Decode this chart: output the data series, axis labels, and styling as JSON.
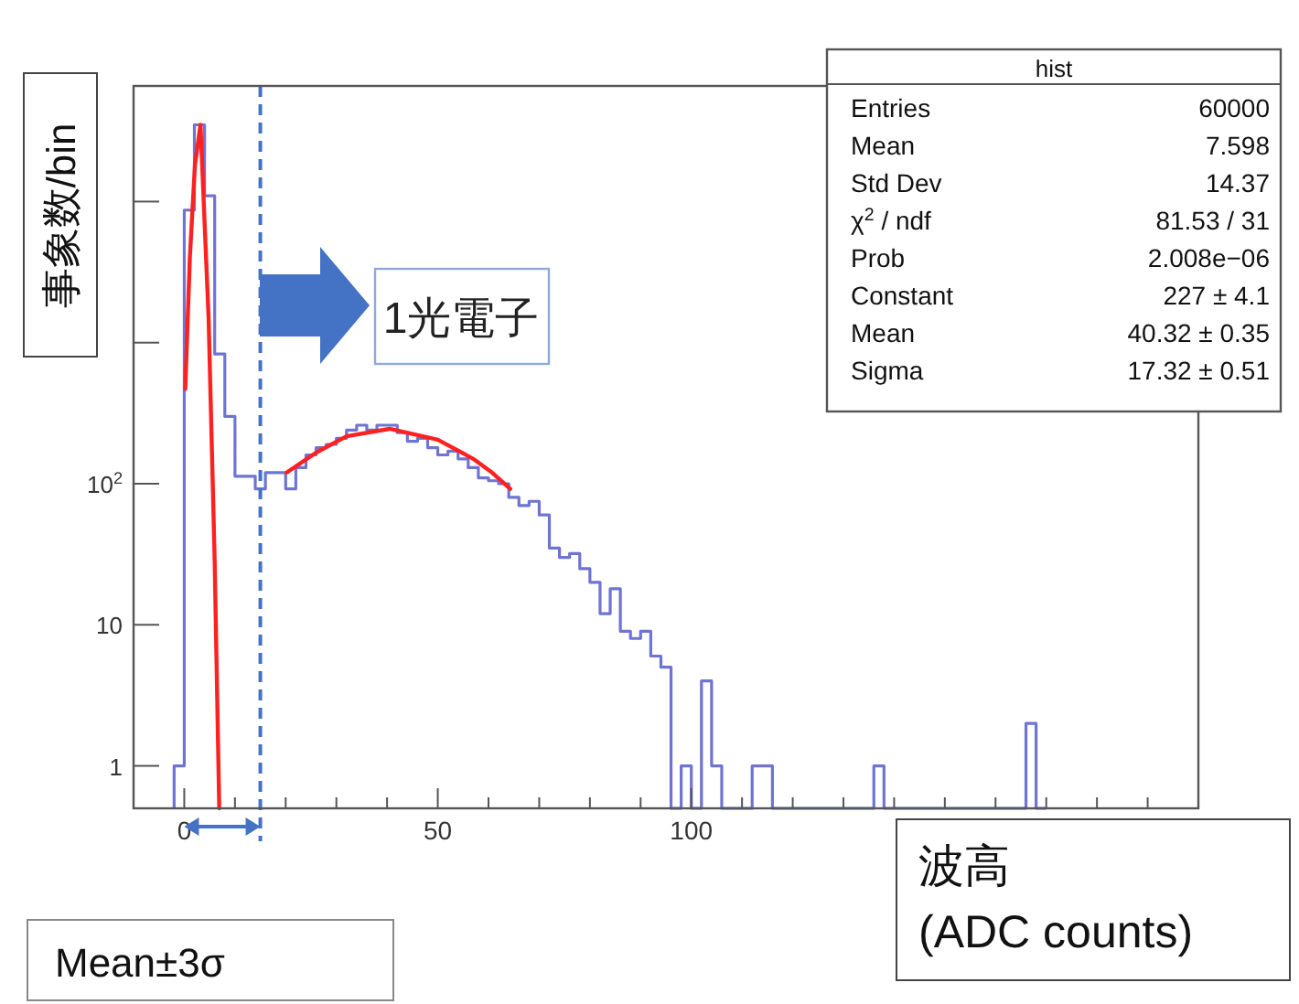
{
  "chart_data": {
    "type": "histogram",
    "xlabel": "波高\n(ADC counts)",
    "ylabel": "事象数/bin",
    "annotations": [
      "1光電子",
      "Mean±3σ",
      "hist",
      "Entries",
      "60000",
      "Mean",
      "7.598",
      "Std Dev",
      "14.37",
      "χ$^{2}$ / ndf",
      "81.53 / 31",
      "Prob",
      "2.008e−06",
      "Constant",
      "227 ± 4.1",
      "Mean",
      "40.32 ± 0.35",
      "Sigma",
      "17.32 ± 0.51"
    ],
    "bins": [
      -2,
      0,
      2,
      4,
      6,
      8,
      10,
      12,
      14,
      16,
      18,
      20,
      22,
      24,
      26,
      28,
      30,
      32,
      34,
      36,
      38,
      40,
      42,
      44,
      46,
      48,
      50,
      52,
      54,
      56,
      58,
      60,
      62,
      64,
      66,
      68,
      70,
      72,
      74,
      76,
      78,
      80,
      82,
      84,
      86,
      88,
      90,
      92,
      94,
      96,
      98,
      100,
      102,
      104,
      106,
      108,
      110,
      112,
      114,
      116,
      118,
      120,
      122,
      124,
      126,
      128,
      130,
      132,
      134,
      136,
      138,
      140,
      142,
      144,
      146,
      148,
      150,
      152,
      154,
      156,
      158,
      160,
      162,
      164,
      166,
      168,
      170
    ],
    "series": [
      {
        "color": "#6f74d2",
        "values": [
          1,
          8700,
          35000,
          11000,
          830,
          300,
          113,
          113,
          92,
          120,
          120,
          92,
          130,
          160,
          180,
          190,
          210,
          240,
          260,
          240,
          260,
          260,
          230,
          200,
          210,
          180,
          160,
          170,
          150,
          130,
          110,
          105,
          100,
          80,
          70,
          75,
          60,
          35,
          30,
          32,
          25,
          20,
          12,
          18,
          9,
          8,
          9,
          6,
          5,
          null,
          1,
          null,
          4,
          1,
          null,
          null,
          null,
          1,
          1,
          null,
          null,
          null,
          null,
          null,
          null,
          null,
          null,
          null,
          null,
          1,
          null,
          null,
          null,
          null,
          null,
          null,
          null,
          null,
          null,
          null,
          null,
          null,
          null,
          null,
          2,
          null
        ]
      },
      {
        "type": "line",
        "color": "#ff2020",
        "x": [
          0.2,
          1.1,
          2.1,
          3.2,
          4.8,
          6,
          6.9
        ],
        "values": [
          470,
          4000,
          18000,
          35000,
          1500,
          28,
          0.5
        ]
      },
      {
        "type": "line",
        "color": "#ff2020",
        "x": [
          20.2,
          26,
          32,
          40.5,
          50,
          57,
          60.7,
          64.3
        ],
        "values": [
          120,
          166,
          217,
          245,
          205,
          150,
          120,
          92
        ]
      }
    ],
    "ref_lines": [
      {
        "axis": "x",
        "value": 15,
        "color": "#4472c4",
        "line_style": "dashed"
      }
    ],
    "log": "y",
    "xlim": [
      -10,
      200
    ],
    "ylim": [
      0.5,
      66000
    ],
    "xticks": [
      {
        "value": -10,
        "label": null
      },
      0,
      {
        "value": 10,
        "label": null
      },
      {
        "value": 20,
        "label": null
      },
      {
        "value": 30,
        "label": null
      },
      {
        "value": 40,
        "label": null
      },
      50,
      {
        "value": 60,
        "label": null
      },
      {
        "value": 70,
        "label": null
      },
      {
        "value": 80,
        "label": null
      },
      {
        "value": 90,
        "label": null
      },
      100,
      {
        "value": 110,
        "label": null
      },
      {
        "value": 120,
        "label": null
      },
      {
        "value": 130,
        "label": null
      },
      {
        "value": 140,
        "label": null
      },
      {
        "value": 150,
        "label": null
      },
      {
        "value": 160,
        "label": null
      },
      {
        "value": 170,
        "label": null
      },
      {
        "value": 180,
        "label": null
      },
      {
        "value": 190,
        "label": null
      }
    ],
    "yticks": [
      1,
      10,
      {
        "value": 100,
        "label": "10$^{2}$"
      },
      {
        "value": 1000,
        "label": null
      },
      {
        "value": 10000,
        "label": null
      }
    ]
  }
}
